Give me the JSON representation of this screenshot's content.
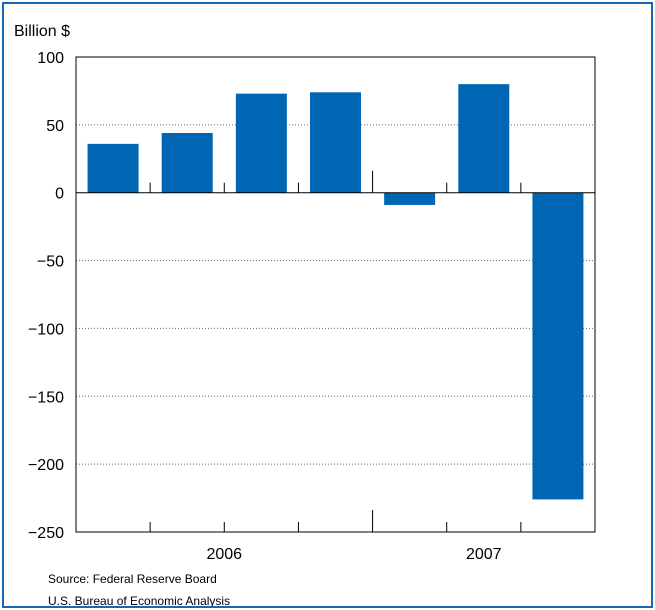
{
  "chart_data": {
    "type": "bar",
    "title": "",
    "ylabel": "Billion $",
    "xlabel": "",
    "year_labels": [
      "2006",
      "2007"
    ],
    "ylim": [
      -250,
      100
    ],
    "yticks": [
      -250,
      -200,
      -150,
      -100,
      -50,
      0,
      50,
      100
    ],
    "ytick_labels": [
      "−250",
      "−200",
      "−150",
      "−100",
      "−50",
      "0",
      "50",
      "100"
    ],
    "grid": true,
    "values": [
      36,
      44,
      73,
      74,
      -9,
      80,
      -226
    ],
    "bar_color": "#0066b3"
  },
  "footer": {
    "source_line1": "Source:  Federal Reserve Board",
    "source_line2": "U.S. Bureau of Economic Analysis"
  },
  "colors": {
    "frame": "#1a66b3",
    "bar": "#0066b3",
    "grid": "#666666"
  }
}
